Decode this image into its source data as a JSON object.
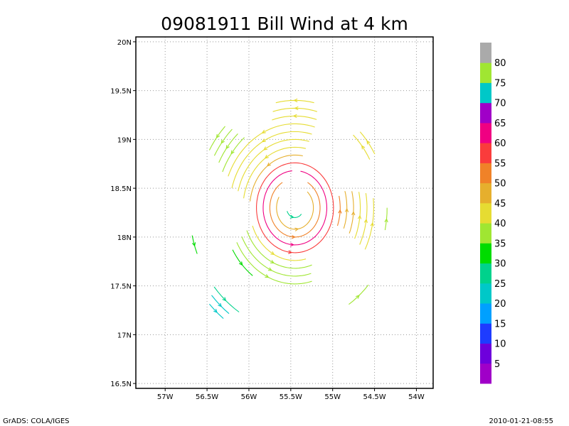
{
  "title": "09081911 Bill Wind at 4 km",
  "footer_left": "GrADS: COLA/IGES",
  "footer_right": "2010-01-21-08:55",
  "chart_data": {
    "type": "streamline",
    "title": "09081911 Bill Wind at 4 km",
    "xlabel": "",
    "ylabel": "",
    "xlim": [
      -57.35,
      -53.8
    ],
    "ylim": [
      16.45,
      20.05
    ],
    "grid": true,
    "x_ticks": [
      {
        "value": -57.0,
        "label": "57W"
      },
      {
        "value": -56.5,
        "label": "56.5W"
      },
      {
        "value": -56.0,
        "label": "56W"
      },
      {
        "value": -55.5,
        "label": "55.5W"
      },
      {
        "value": -55.0,
        "label": "55W"
      },
      {
        "value": -54.5,
        "label": "54.5W"
      },
      {
        "value": -54.0,
        "label": "54W"
      }
    ],
    "y_ticks": [
      {
        "value": 16.5,
        "label": "16.5N"
      },
      {
        "value": 17.0,
        "label": "17N"
      },
      {
        "value": 17.5,
        "label": "17.5N"
      },
      {
        "value": 18.0,
        "label": "18N"
      },
      {
        "value": 18.5,
        "label": "18.5N"
      },
      {
        "value": 19.0,
        "label": "19N"
      },
      {
        "value": 19.5,
        "label": "19.5N"
      },
      {
        "value": 20.0,
        "label": "20N"
      }
    ],
    "center": {
      "lon": -55.45,
      "lat": 18.3
    },
    "circulation": "counter-clockwise",
    "colorbar": {
      "levels": [
        5,
        10,
        15,
        20,
        25,
        30,
        35,
        40,
        45,
        50,
        55,
        60,
        65,
        70,
        75,
        80
      ],
      "colors": [
        "#a000c8",
        "#6e00dc",
        "#1e3cff",
        "#00a0ff",
        "#00c8c8",
        "#00d28c",
        "#00dc00",
        "#a0e632",
        "#e6dc32",
        "#e6af2d",
        "#f08228",
        "#fa3c3c",
        "#f00082",
        "#a000c8",
        "#00c8c8",
        "#a0e632",
        "#aaaaaa"
      ]
    },
    "arcs": [
      {
        "r": 0.1,
        "start": 200,
        "end": 320,
        "speed": 25
      },
      {
        "r": 0.22,
        "start": 150,
        "end": 410,
        "speed": 45
      },
      {
        "r": 0.3,
        "start": 120,
        "end": 420,
        "speed": 50
      },
      {
        "r": 0.38,
        "start": 95,
        "end": 440,
        "speed": 60
      },
      {
        "r": 0.46,
        "start": 85,
        "end": 445,
        "speed": 55
      },
      {
        "r": 0.54,
        "start": 80,
        "end": 175,
        "speed": 45
      },
      {
        "r": 0.54,
        "start": 200,
        "end": 285,
        "speed": 40
      },
      {
        "r": 0.54,
        "start": 340,
        "end": 375,
        "speed": 50
      },
      {
        "r": 0.62,
        "start": 78,
        "end": 172,
        "speed": 40
      },
      {
        "r": 0.62,
        "start": 202,
        "end": 290,
        "speed": 35
      },
      {
        "r": 0.62,
        "start": 340,
        "end": 378,
        "speed": 45
      },
      {
        "r": 0.7,
        "start": 76,
        "end": 168,
        "speed": 40
      },
      {
        "r": 0.7,
        "start": 205,
        "end": 288,
        "speed": 35
      },
      {
        "r": 0.7,
        "start": 338,
        "end": 375,
        "speed": 45
      },
      {
        "r": 0.78,
        "start": 75,
        "end": 165,
        "speed": 40
      },
      {
        "r": 0.78,
        "start": 207,
        "end": 285,
        "speed": 35
      },
      {
        "r": 0.78,
        "start": 336,
        "end": 372,
        "speed": 40
      },
      {
        "r": 0.86,
        "start": 74,
        "end": 160,
        "speed": 40
      },
      {
        "r": 0.86,
        "start": 210,
        "end": 236,
        "speed": 30
      },
      {
        "r": 0.86,
        "start": 334,
        "end": 370,
        "speed": 40
      },
      {
        "r": 0.94,
        "start": 74,
        "end": 108,
        "speed": 40
      },
      {
        "r": 0.94,
        "start": 130,
        "end": 158,
        "speed": 35
      },
      {
        "r": 0.94,
        "start": 333,
        "end": 368,
        "speed": 40
      },
      {
        "r": 1.02,
        "start": 75,
        "end": 105,
        "speed": 40
      },
      {
        "r": 1.02,
        "start": 132,
        "end": 155,
        "speed": 35
      },
      {
        "r": 1.02,
        "start": 29,
        "end": 48,
        "speed": 40
      },
      {
        "r": 1.1,
        "start": 78,
        "end": 103,
        "speed": 40
      },
      {
        "r": 1.1,
        "start": 133,
        "end": 153,
        "speed": 35
      },
      {
        "r": 1.1,
        "start": 30,
        "end": 47,
        "speed": 40
      },
      {
        "r": 1.1,
        "start": 348,
        "end": 360,
        "speed": 35
      },
      {
        "r": 1.18,
        "start": 135,
        "end": 150,
        "speed": 35
      },
      {
        "r": 1.18,
        "start": 303,
        "end": 318,
        "speed": 35
      },
      {
        "r": 1.26,
        "start": 193,
        "end": 203,
        "speed": 30
      },
      {
        "r": 1.26,
        "start": 220,
        "end": 238,
        "speed": 25
      },
      {
        "r": 1.34,
        "start": 222,
        "end": 236,
        "speed": 20
      },
      {
        "r": 1.42,
        "start": 224,
        "end": 234,
        "speed": 20
      }
    ]
  }
}
